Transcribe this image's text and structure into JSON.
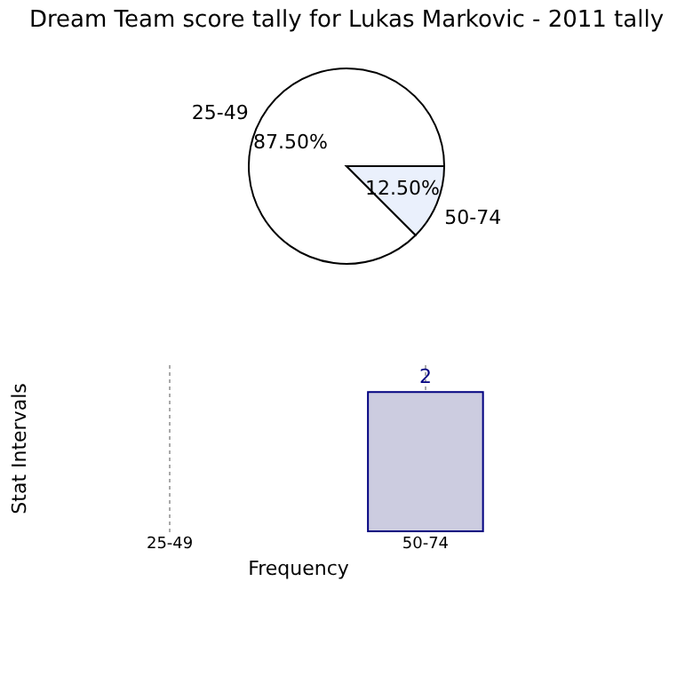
{
  "chart_data": [
    {
      "type": "pie",
      "title": "Dream Team score tally for Lukas Markovic - 2011 tally",
      "categories": [
        "25-49",
        "50-74"
      ],
      "values": [
        87.5,
        12.5
      ],
      "colors": [
        "#ffffff",
        "#eaf0fc"
      ],
      "value_labels": [
        "87.50%",
        "12.50%"
      ]
    },
    {
      "type": "bar",
      "xlabel": "Frequency",
      "ylabel": "Stat Intervals",
      "categories": [
        "25-49",
        "50-74"
      ],
      "values": [
        null,
        2
      ],
      "color": "#cccce0",
      "value_labels": [
        null,
        "2"
      ],
      "grid": "x"
    }
  ]
}
